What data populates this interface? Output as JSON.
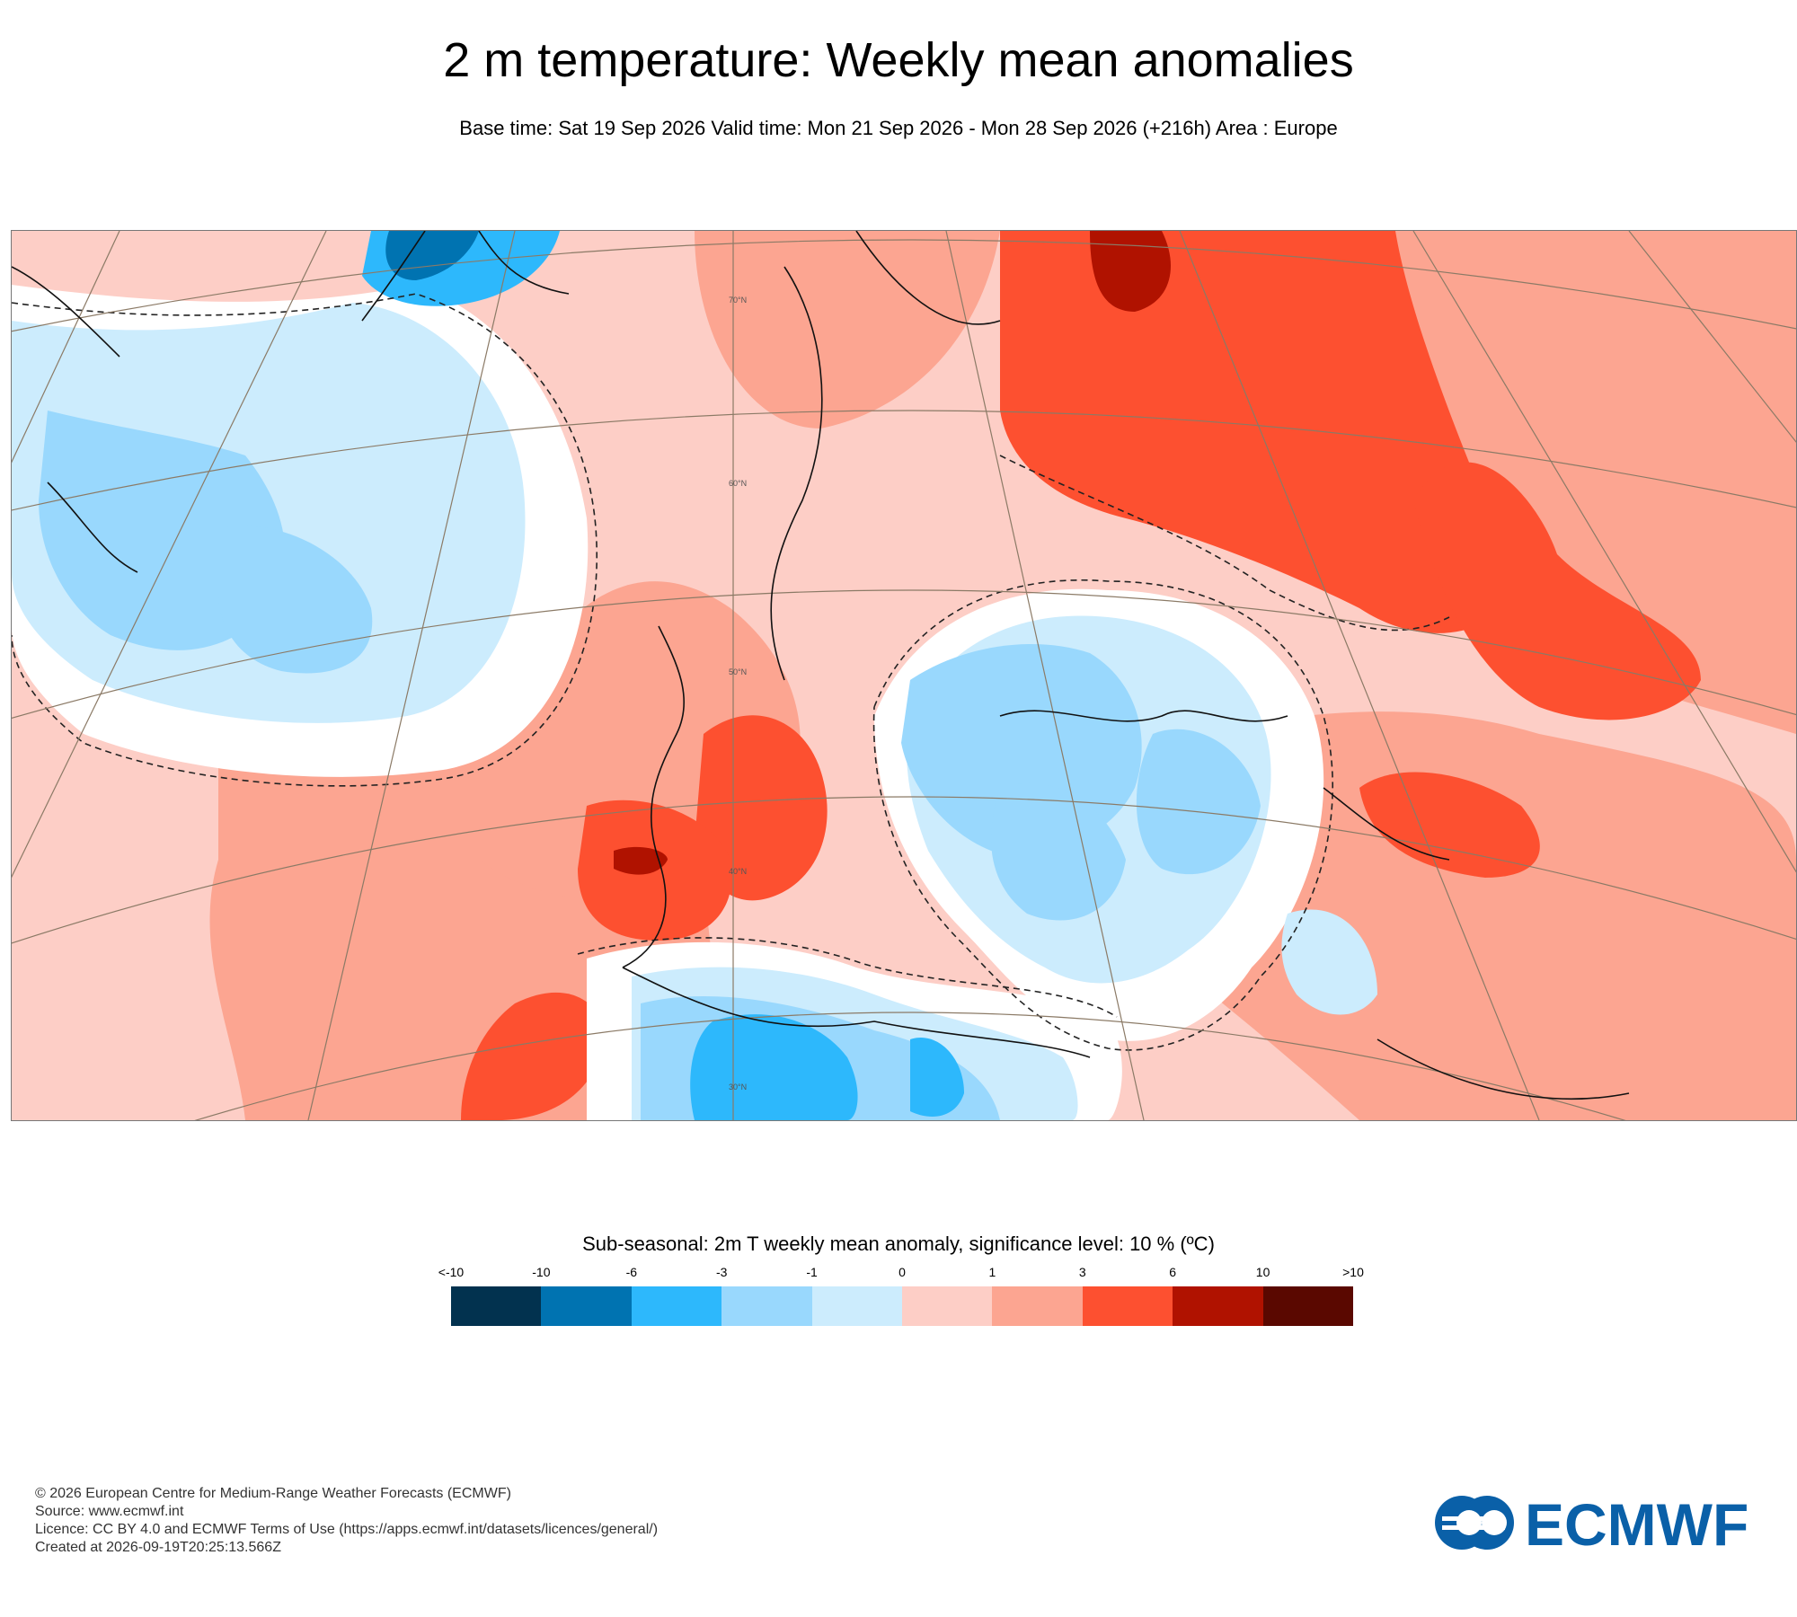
{
  "header": {
    "title": "2 m temperature: Weekly mean anomalies",
    "subtitle": "Base time: Sat 19 Sep 2026 Valid time: Mon 21 Sep 2026 - Mon 28 Sep 2026 (+216h) Area : Europe"
  },
  "map": {
    "latitude_labels": [
      "70°N",
      "60°N",
      "50°N",
      "40°N",
      "30°N"
    ],
    "significance_contour": "dashed"
  },
  "legend": {
    "title": "Sub-seasonal: 2m T weekly mean anomaly, significance level: 10 % (ºC)",
    "labels": [
      "<-10",
      "-10",
      "-6",
      "-3",
      "-1",
      "0",
      "1",
      "3",
      "6",
      "10",
      ">10"
    ],
    "colors": [
      "#02324f",
      "#0073b1",
      "#2db8fc",
      "#99d8fd",
      "#ccecfd",
      "#fdcec6",
      "#fca591",
      "#fd5030",
      "#b01200",
      "#5a0800"
    ]
  },
  "footer": {
    "copyright": "© 2026 European Centre for Medium-Range Weather Forecasts (ECMWF)",
    "source": "Source: www.ecmwf.int",
    "licence": "Licence: CC BY 4.0 and ECMWF Terms of Use (https://apps.ecmwf.int/datasets/licences/general/)",
    "created": "Created at 2026-09-19T20:25:13.566Z"
  },
  "logo": {
    "text": "ECMWF",
    "color": "#0a60a8"
  }
}
